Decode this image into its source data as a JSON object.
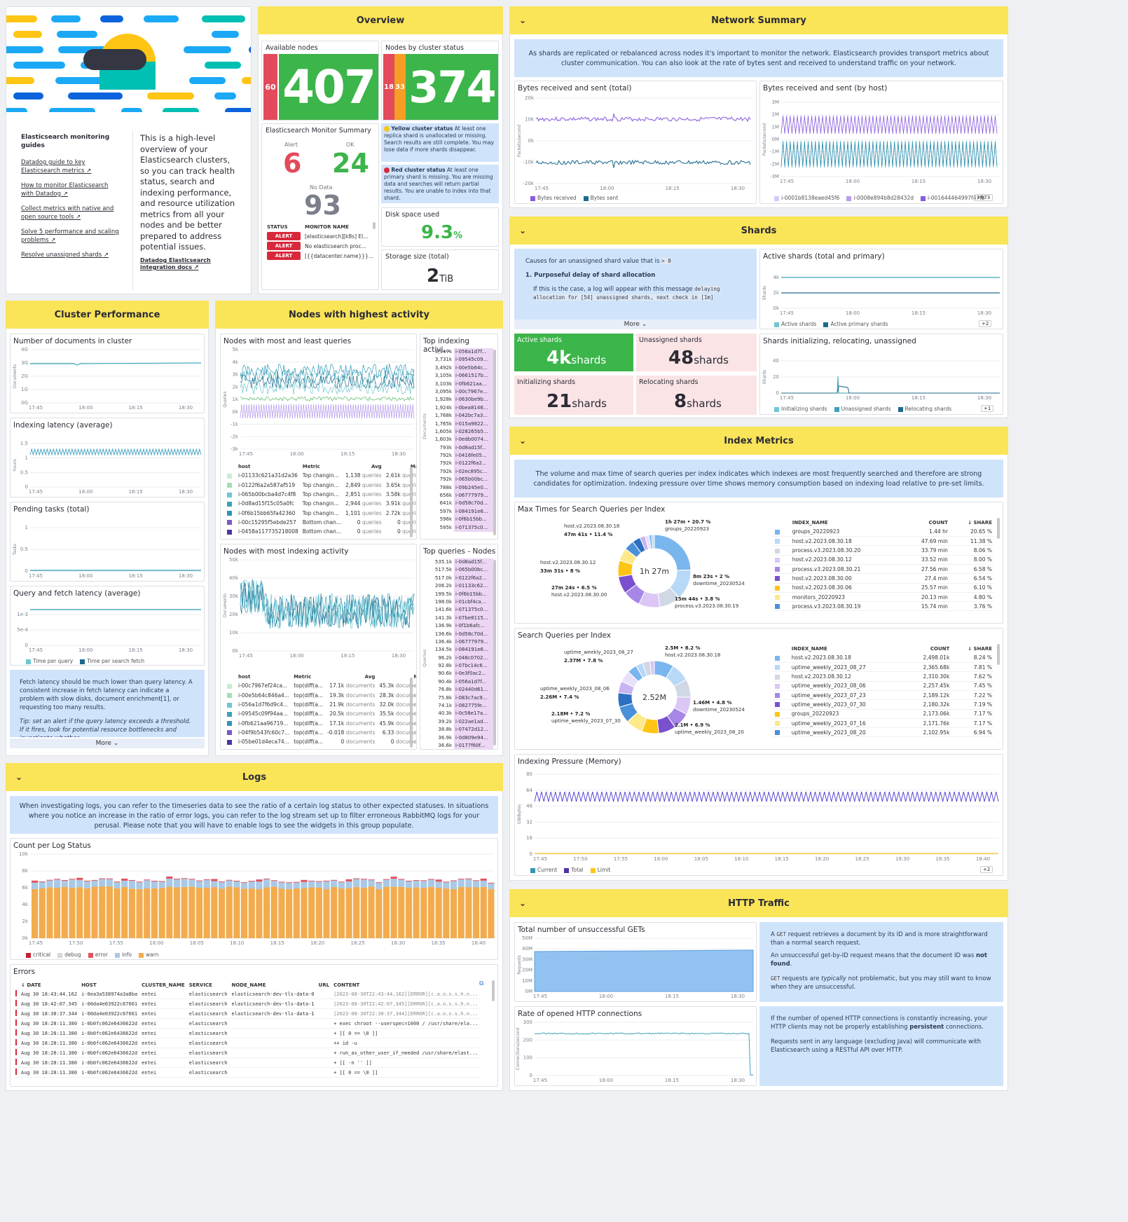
{
  "header_card": {
    "guides_title": "Elasticsearch monitoring guides",
    "links": [
      "Datadog guide to key Elasticsearch metrics ↗",
      "How to monitor Elasticsearch with Datadog ↗",
      "Collect metrics with native and open source tools ↗",
      "Solve 5 performance and scaling problems ↗",
      "Resolve unassigned shards ↗"
    ],
    "description": "This is a high-level overview of your Elasticsearch clusters, so you can track health status, search and indexing performance, and resource utilization metrics from all your nodes and be better prepared to address potential issues.",
    "integration_link": "Datadog Elasticsearch integration docs ↗"
  },
  "overview": {
    "title": "Overview",
    "available_nodes": {
      "label": "Available nodes",
      "red": "60",
      "green": "407"
    },
    "nodes_by_status": {
      "label": "Nodes by cluster status",
      "red": "18",
      "orange": "33",
      "green": "374"
    },
    "monitor_summary": {
      "label": "Elasticsearch Monitor Summary",
      "alert_label": "Alert",
      "alert": "6",
      "ok_label": "OK",
      "ok": "24",
      "nodata_label": "No Data",
      "nodata": "93",
      "cols": [
        "STATUS",
        "MONITOR NAME"
      ],
      "rows": [
        {
          "status": "ALERT",
          "name": "[elasticsearch][k8s] El..."
        },
        {
          "status": "ALERT",
          "name": "No elasticsearch proc..."
        },
        {
          "status": "ALERT",
          "name": "[{{datacenter.name}}}..."
        }
      ]
    },
    "yellow_note_title": "Yellow cluster status",
    "yellow_note": " At least one replica shard is unallocated or missing. Search results are still complete. You may lose data if more shards disappear.",
    "red_note_title": "Red cluster status",
    "red_note": " At least one primary shard is missing. You are missing data and searches will return partial results. You are unable to index into that shard.",
    "disk_label": "Disk space used",
    "disk_value": "9.3",
    "disk_unit": "%",
    "storage_label": "Storage size (total)",
    "storage_value": "2",
    "storage_unit": "TiB"
  },
  "network": {
    "title": "Network Summary",
    "note": "As shards are replicated or rebalanced across nodes it's important to monitor the network. Elasticsearch provides transport metrics about cluster communication. You can also look at the rate of bytes sent and received to understand traffic on your network.",
    "w1_title": "Bytes received and sent (total)",
    "w1_ylabel": "Packets/second",
    "w1_yticks": [
      "20k",
      "10k",
      "0k",
      "-10k",
      "-20k"
    ],
    "w1_legend": [
      "Bytes received",
      "Bytes sent"
    ],
    "w2_title": "Bytes received and sent (by host)",
    "w2_ylabel": "Packets/second",
    "w2_yticks": [
      "3M",
      "2M",
      "1M",
      "0M",
      "-1M",
      "-2M",
      "-3M"
    ],
    "w2_legend": [
      "i-0001b8138eaed45f6",
      "i-0008e894b8d28432d",
      "i-001644464997f47fb"
    ],
    "w2_more": "+873"
  },
  "xticks4": [
    "17:45",
    "18:00",
    "18:15",
    "18:30"
  ],
  "shards": {
    "title": "Shards",
    "note_intro": "Causes for an unassigned shard value that is ",
    "note_code": "> 0",
    "note_heading": "1. Purposeful delay of shard allocation",
    "note_text": "If this is the case, a log will appear with this message ",
    "note_code2": "delaying allocation for [54] unassigned shards, next check in [1m]",
    "more": "More",
    "active_label": "Active shards",
    "active_value": "4k",
    "active_unit": "shards",
    "unassigned_label": "Unassigned shards",
    "unassigned_value": "48",
    "unassigned_unit": "shards",
    "init_label": "Initializing shards",
    "init_value": "21",
    "init_unit": "shards",
    "reloc_label": "Relocating shards",
    "reloc_value": "8",
    "reloc_unit": "shards",
    "w1_title": "Active shards (total and primary)",
    "w1_ylabel": "Shards",
    "w1_yticks": [
      "4k",
      "2k",
      "0k"
    ],
    "w1_legend": [
      "Active shards",
      "Active primary shards"
    ],
    "w1_more": "+2",
    "w2_title": "Shards initializing, relocating, unassigned",
    "w2_ylabel": "Shards",
    "w2_yticks": [
      "40",
      "20",
      "0"
    ],
    "w2_legend": [
      "Initializing shards",
      "Unassigned shards",
      "Relocating shards"
    ],
    "w2_more": "+1"
  },
  "cluster_perf": {
    "title": "Cluster Performance",
    "w1_title": "Number of documents in cluster",
    "w1_ylabel": "Documents",
    "w1_yticks": [
      "4G",
      "3G",
      "2G",
      "1G",
      "0G"
    ],
    "w2_title": "Indexing latency (average)",
    "w2_ylabel": "Hours",
    "w2_yticks": [
      "1.5",
      "1",
      "0.5",
      "0"
    ],
    "w3_title": "Pending tasks (total)",
    "w3_ylabel": "Tasks",
    "w3_yticks": [
      "1",
      "0.5",
      "0"
    ],
    "w4_title": "Query and fetch latency (average)",
    "w4_yticks": [
      "1e-3",
      "5e-4",
      "0"
    ],
    "w4_legend": [
      "Time per query",
      "Time per search fetch"
    ],
    "note": "Fetch latency should be much lower than query latency. A consistent increase in fetch latency can indicate a problem with slow disks, document enrichment[1], or requesting too many results.",
    "tip": "Tip: set an alert if the query latency exceeds a threshold. If it fires, look for potential resource bottlenecks and investigate whether",
    "more": "More"
  },
  "nodes_activity": {
    "title": "Nodes with highest activity",
    "w1_title": "Nodes with most and least queries",
    "w1_ylabel": "Queries",
    "w1_yticks": [
      "5k",
      "4k",
      "3k",
      "2k",
      "1k",
      "0k",
      "-1k",
      "-2k",
      "-3k"
    ],
    "w1_cols": [
      "host",
      "Metric",
      "Avg",
      "Max"
    ],
    "w1_rows": [
      [
        "i-01133c621a31d2a36",
        "Top changin...",
        "1,138",
        "queries",
        "2.61k",
        "queries"
      ],
      [
        "i-0122f6a2a587af519",
        "Top changin...",
        "2,849",
        "queries",
        "3.65k",
        "queries"
      ],
      [
        "i-065b00bcba4d7c4f8",
        "Top changin...",
        "2,851",
        "queries",
        "3.58k",
        "queries"
      ],
      [
        "i-0d8ad15f15c05a0fc",
        "Top changin...",
        "2,944",
        "queries",
        "3.91k",
        "queries"
      ],
      [
        "i-0f6b15bb65fa42360",
        "Top changin...",
        "1,101",
        "queries",
        "2.72k",
        "queries"
      ],
      [
        "i-00c15295f5ebde257",
        "Bottom chan...",
        "0",
        "queries",
        "0",
        "queries"
      ],
      [
        "i-0458a117735218008",
        "Bottom chan...",
        "0",
        "queries",
        "0",
        "queries"
      ]
    ],
    "w2_title": "Top indexing activi...",
    "w2_ylabel": "Documents",
    "w2_rows": [
      [
        "3,947k",
        "i-056a1d7f..."
      ],
      [
        "3,731k",
        "i-09545c09..."
      ],
      [
        "3,492k",
        "i-00e5b64c..."
      ],
      [
        "3,105k",
        "i-0661517b..."
      ],
      [
        "3,103k",
        "i-0fb621aa..."
      ],
      [
        "3,095k",
        "i-00c7967e..."
      ],
      [
        "1,928k",
        "i-0630be9b..."
      ],
      [
        "1,924k",
        "i-0bea8146..."
      ],
      [
        "1,768k",
        "i-042bc7a3..."
      ],
      [
        "1,765k",
        "i-015a9822..."
      ],
      [
        "1,605k",
        "i-028265b5..."
      ],
      [
        "1,603k",
        "i-0edb0074..."
      ],
      [
        "793k",
        "i-0d8ad15f..."
      ],
      [
        "792k",
        "i-0416fe05..."
      ],
      [
        "792k",
        "i-0122f6a2..."
      ],
      [
        "792k",
        "i-02ec895c..."
      ],
      [
        "792k",
        "i-065b00bc..."
      ],
      [
        "788k",
        "i-09b245e0..."
      ],
      [
        "656k",
        "i-06777979..."
      ],
      [
        "641k",
        "i-0d58c70d..."
      ],
      [
        "597k",
        "i-084191e6..."
      ],
      [
        "596k",
        "i-0f6b15bb..."
      ],
      [
        "595k",
        "i-071375c0..."
      ]
    ],
    "w3_title": "Nodes with most indexing activity",
    "w3_ylabel": "Documents",
    "w3_yticks": [
      "50k",
      "40k",
      "30k",
      "20k",
      "10k",
      "0k"
    ],
    "w3_cols": [
      "host",
      "Metric",
      "Avg",
      "Max"
    ],
    "w3_rows": [
      [
        "i-00c7967ef24ca...",
        "top(diff(a...",
        "17.1k",
        "documents",
        "45.3k",
        "documents"
      ],
      [
        "i-00e5b64c846a4...",
        "top(diff(a...",
        "19.3k",
        "documents",
        "28.3k",
        "documents"
      ],
      [
        "i-056a1d7f6d9c4...",
        "top(diff(a...",
        "21.9k",
        "documents",
        "32.0k",
        "documents"
      ],
      [
        "i-09545c09f94aa...",
        "top(diff(a...",
        "20.5k",
        "documents",
        "35.5k",
        "documents"
      ],
      [
        "i-0fb621aa96719...",
        "top(diff(a...",
        "17.1k",
        "documents",
        "45.9k",
        "documents"
      ],
      [
        "i-04f9b543fc60c7...",
        "top(diff(a...",
        "-0.018",
        "documents",
        "6.33",
        "documents"
      ],
      [
        "i-05be01d4eca74...",
        "top(diff(a...",
        "0",
        "documents",
        "0",
        "documents"
      ]
    ],
    "w4_title": "Top queries - Nodes",
    "w4_ylabel": "Queries",
    "w4_rows": [
      [
        "535.1k",
        "i-0d8ad15f..."
      ],
      [
        "517.5k",
        "i-065b00bc..."
      ],
      [
        "517.0k",
        "i-0122f6a2..."
      ],
      [
        "206.2k",
        "i-01133c62..."
      ],
      [
        "199.5k",
        "i-0f6b15bb..."
      ],
      [
        "198.0k",
        "i-01cbf4ca..."
      ],
      [
        "141.6k",
        "i-071375c0..."
      ],
      [
        "141.3k",
        "i-07be8115..."
      ],
      [
        "136.9k",
        "i-0f1b6afc..."
      ],
      [
        "136.6k",
        "i-0d58c70d..."
      ],
      [
        "136.4k",
        "i-06777979..."
      ],
      [
        "134.5k",
        "i-084191e6..."
      ],
      [
        "96.2k",
        "i-048c0702..."
      ],
      [
        "92.8k",
        "i-07bc14c6..."
      ],
      [
        "90.6k",
        "i-0e3f0ac2..."
      ],
      [
        "90.4k",
        "i-056a1d7f..."
      ],
      [
        "76.8k",
        "i-02440d61..."
      ],
      [
        "75.8k",
        "i-083c7ac9..."
      ],
      [
        "74.1k",
        "i-082775fe..."
      ],
      [
        "40.3k",
        "i-0c58e17a..."
      ],
      [
        "39.2k",
        "i-022ae1ad..."
      ],
      [
        "38.8k",
        "i-07472d12..."
      ],
      [
        "36.9k",
        "i-0d809e94..."
      ],
      [
        "36.6k",
        "i-0177f60f..."
      ]
    ]
  },
  "index_metrics": {
    "title": "Index Metrics",
    "note": "The volume and max time of search queries per index indicates which indexes are most frequently searched and therefore are strong candidates for optimization. Indexing pressure over time shows memory consumption based on indexing load relative to pre-set limits.",
    "w1_title": "Max Times for Search Queries per Index",
    "w1_center": "1h 27m",
    "w1_callouts": [
      {
        "name": "host.v2.2023.08.30.18",
        "val": "47m 41s • 11.4 %"
      },
      {
        "name": "groups_20220923",
        "val": "1h 27m • 20.7 %"
      },
      {
        "name": "host.v2.2023.08.30.12",
        "val": "33m 31s • 8 %"
      },
      {
        "name": "downtime_20230524",
        "val": "8m 23s • 2 %"
      },
      {
        "name": "host.v2.2023.08.30.00",
        "val": "27m 24s • 6.5 %"
      },
      {
        "name": "process.v3.2023.08.30.19",
        "val": "15m 44s • 3.8 %"
      }
    ],
    "w1_cols": [
      "INDEX_NAME",
      "COUNT",
      "↓ SHARE"
    ],
    "w1_rows": [
      [
        "groups_20220923",
        "1.44 hr",
        "20.65 %"
      ],
      [
        "host.v2.2023.08.30.18",
        "47.69 min",
        "11.38 %"
      ],
      [
        "process.v3.2023.08.30.20",
        "33.79 min",
        "8.06 %"
      ],
      [
        "host.v2.2023.08.30.12",
        "33.52 min",
        "8.00 %"
      ],
      [
        "process.v3.2023.08.30.21",
        "27.56 min",
        "6.58 %"
      ],
      [
        "host.v2.2023.08.30.00",
        "27.4 min",
        "6.54 %"
      ],
      [
        "host.v2.2023.08.30.06",
        "25.57 min",
        "6.10 %"
      ],
      [
        "monitors_20220923",
        "20.13 min",
        "4.80 %"
      ],
      [
        "process.v3.2023.08.30.19",
        "15.74 min",
        "3.76 %"
      ]
    ],
    "w2_title": "Search Queries per Index",
    "w2_center": "2.52M",
    "w2_callouts": [
      {
        "name": "uptime_weekly_2023_08_27",
        "val": "2.37M • 7.8 %"
      },
      {
        "name": "host.v2.2023.08.30.18",
        "val": "2.5M • 8.2 %"
      },
      {
        "name": "uptime_weekly_2023_08_06",
        "val": "2.26M • 7.4 %"
      },
      {
        "name": "downtime_20230524",
        "val": "1.46M • 4.8 %"
      },
      {
        "name": "uptime_weekly_2023_07_30",
        "val": "2.18M • 7.2 %"
      },
      {
        "name": "uptime_weekly_2023_08_20",
        "val": "2.1M • 6.9 %"
      }
    ],
    "w2_cols": [
      "INDEX_NAME",
      "COUNT",
      "↓ SHARE"
    ],
    "w2_rows": [
      [
        "host.v2.2023.08.30.18",
        "2,498.01k",
        "8.24 %"
      ],
      [
        "uptime_weekly_2023_08_27",
        "2,365.68k",
        "7.81 %"
      ],
      [
        "host.v2.2023.08.30.12",
        "2,310.30k",
        "7.62 %"
      ],
      [
        "uptime_weekly_2023_08_06",
        "2,257.45k",
        "7.45 %"
      ],
      [
        "uptime_weekly_2023_07_23",
        "2,189.12k",
        "7.22 %"
      ],
      [
        "uptime_weekly_2023_07_30",
        "2,180.32k",
        "7.19 %"
      ],
      [
        "groups_20220923",
        "2,173.06k",
        "7.17 %"
      ],
      [
        "uptime_weekly_2023_07_16",
        "2,171.76k",
        "7.17 %"
      ],
      [
        "uptime_weekly_2023_08_20",
        "2,102.95k",
        "6.94 %"
      ]
    ],
    "w3_title": "Indexing Pressure (Memory)",
    "w3_ylabel": "Gibibytes",
    "w3_yticks": [
      "80",
      "64",
      "48",
      "32",
      "16",
      "0"
    ],
    "w3_xticks": [
      "17:45",
      "17:50",
      "17:55",
      "18:00",
      "18:05",
      "18:10",
      "18:15",
      "18:20",
      "18:25",
      "18:30",
      "18:35",
      "18:40"
    ],
    "w3_legend": [
      "Current",
      "Total",
      "Limit"
    ],
    "w3_more": "+2"
  },
  "logs": {
    "title": "Logs",
    "note": "When investigating logs, you can refer to the timeseries data to see the ratio of a certain log status to other expected statuses. In situations where you notice an increase in the ratio of error logs, you can refer to the log stream set up to filter erroneous RabbitMQ logs for your perusal. Please note that you will have to enable logs to see the widgets in this group populate.",
    "w1_title": "Count per Log Status",
    "w1_yticks": [
      "10k",
      "8k",
      "6k",
      "4k",
      "2k",
      "0k"
    ],
    "w1_xticks": [
      "17:45",
      "17:50",
      "17:55",
      "18:00",
      "18:05",
      "18:10",
      "18:15",
      "18:20",
      "18:25",
      "18:30",
      "18:35",
      "18:40"
    ],
    "w1_legend": [
      "critical",
      "debug",
      "error",
      "info",
      "warn"
    ],
    "w2_title": "Errors",
    "w2_cols": [
      "DATE",
      "HOST",
      "CLUSTER_NAME",
      "SERVICE",
      "NODE_NAME",
      "URL",
      "CONTENT"
    ],
    "w2_rows": [
      [
        "Aug 30 18:43:44.162",
        "i-0ea3a538974a3a8ba",
        "entei",
        "elasticsearch",
        "elasticsearch-dev-tls-data-0",
        "",
        "[2023-08-30T22:43:44,162][ERROR][c.a.o.s.s.h.n..."
      ],
      [
        "Aug 30 18:42:07.345",
        "i-00da4e03922c67661",
        "entei",
        "elasticsearch",
        "elasticsearch-dev-tls-data-1",
        "",
        "[2023-08-30T22:42:07,345][ERROR][c.a.o.s.s.h.n..."
      ],
      [
        "Aug 30 18:38:37.344",
        "i-00da4e03922c67661",
        "entei",
        "elasticsearch",
        "elasticsearch-dev-tls-data-1",
        "",
        "[2023-08-30T22:38:37,344][ERROR][c.a.o.s.s.h.n..."
      ],
      [
        "Aug 30 18:28:11.380",
        "i-0b0fc062e6436622d",
        "entei",
        "elasticsearch",
        "",
        "",
        "+ exec chroot --userspec=1000 / /usr/share/ela..."
      ],
      [
        "Aug 30 18:28:11.380",
        "i-0b0fc062e6436622d",
        "entei",
        "elasticsearch",
        "",
        "",
        "+ [[ 0 == \\0 ]]"
      ],
      [
        "Aug 30 18:28:11.380",
        "i-0b0fc062e6436622d",
        "entei",
        "elasticsearch",
        "",
        "",
        "++ id -u"
      ],
      [
        "Aug 30 18:28:11.380",
        "i-0b0fc062e6436622d",
        "entei",
        "elasticsearch",
        "",
        "",
        "+ run_as_other_user_if_needed /usr/share/elast..."
      ],
      [
        "Aug 30 18:28:11.380",
        "i-0b0fc062e6436622d",
        "entei",
        "elasticsearch",
        "",
        "",
        "+ [[ -n '' ]]"
      ],
      [
        "Aug 30 18:28:11.380",
        "i-0b0fc062e6436622d",
        "entei",
        "elasticsearch",
        "",
        "",
        "+ [[ 0 == \\0 ]]"
      ]
    ]
  },
  "http": {
    "title": "HTTP Traffic",
    "w1_title": "Total number of unsuccessful GETs",
    "w1_ylabel": "Requests",
    "w1_yticks": [
      "50M",
      "40M",
      "30M",
      "20M",
      "10M",
      "0M"
    ],
    "note1_p1a": "A ",
    "note1_code": "GET",
    "note1_p1b": " request retrieves a document by its ID and is more straightforward than a normal search request.",
    "note1_p2a": "An unsuccessful get-by-ID request means that the document ID was ",
    "note1_p2b": "not found",
    "note1_p3code": "GET",
    "note1_p3a": " requests are ",
    "note1_p3b": "typically",
    "note1_p3c": " not problematic, but you may still want to know when they are unsuccessful.",
    "w2_title": "Rate of opened HTTP connections",
    "w2_ylabel": "Connections/second",
    "w2_yticks": [
      "300",
      "200",
      "100",
      "0"
    ],
    "note2_p1a": "If the number of opened HTTP connections is constantly increasing, your HTTP clients may not be properly establishing ",
    "note2_p1b": "persistent",
    "note2_p1c": " connections.",
    "note2_p2": "Requests sent in any language (excluding Java) will communicate with Elasticsearch using a RESTful API over HTTP."
  },
  "colors": {
    "yellow": "#fae458",
    "green": "#3cb54a",
    "red": "#e34a5b",
    "orange": "#f59d25",
    "blue_note": "#cfe4fb",
    "purple": "#8a5ae0",
    "teal": "#3aa3b8"
  }
}
